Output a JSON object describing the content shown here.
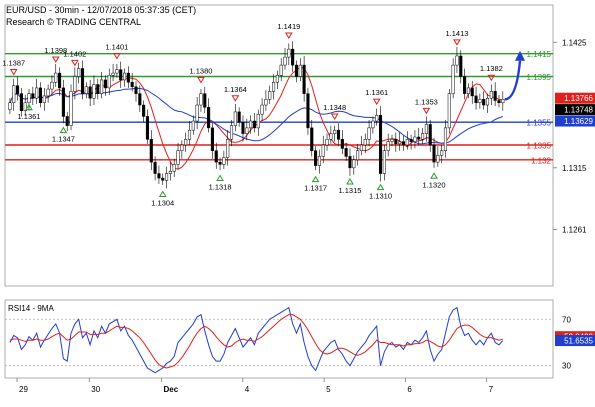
{
  "header": {
    "title": "EUR/USD - 30min - 12/07/2018 05:37:35 (CET)",
    "subtitle": "Research © TRADING CENTRAL"
  },
  "chart_data": [
    {
      "type": "candlestick",
      "ylim": [
        1.1215,
        1.1455
      ],
      "y_ticks": [
        "1.1425",
        "1.1315",
        "1.1261"
      ],
      "x_ticks": [
        "29",
        "30",
        "Dec",
        "4",
        "5",
        "6",
        "7"
      ],
      "levels": [
        {
          "value": 1.1415,
          "label": "1.1415",
          "color": "#2e9b2e"
        },
        {
          "value": 1.1395,
          "label": "1.1395",
          "color": "#2e9b2e"
        },
        {
          "value": 1.1355,
          "label": "1.1355",
          "color": "#1f3fcf"
        },
        {
          "value": 1.1335,
          "label": "1.1335",
          "color": "#e0201a"
        },
        {
          "value": 1.1322,
          "label": "1.132",
          "color": "#e0201a"
        }
      ],
      "price_boxes": [
        {
          "value": 1.1376,
          "label": "1.13766",
          "color": "#e0201a"
        },
        {
          "value": 1.1366,
          "label": "1.13748",
          "color": "#000000"
        },
        {
          "value": 1.1356,
          "label": "1.13629",
          "color": "#1f3fcf"
        }
      ],
      "annotations_high": [
        {
          "t": 1,
          "label": "1.1387"
        },
        {
          "t": 12,
          "label": "1.1398"
        },
        {
          "t": 17,
          "label": "1.1402"
        },
        {
          "t": 28,
          "label": "1.1401"
        },
        {
          "t": 50,
          "label": "1.1380"
        },
        {
          "t": 59,
          "label": "1.1364"
        },
        {
          "t": 73,
          "label": "1.1419"
        },
        {
          "t": 85,
          "label": "1.1348"
        },
        {
          "t": 96,
          "label": "1.1361"
        },
        {
          "t": 109,
          "label": "1.1353"
        },
        {
          "t": 117,
          "label": "1.1413"
        },
        {
          "t": 126,
          "label": "1.1382"
        }
      ],
      "annotations_low": [
        {
          "t": 5,
          "label": "1.1361"
        },
        {
          "t": 14,
          "label": "1.1347"
        },
        {
          "t": 40,
          "label": "1.1304"
        },
        {
          "t": 55,
          "label": "1.1318"
        },
        {
          "t": 80,
          "label": "1.1317"
        },
        {
          "t": 89,
          "label": "1.1315"
        },
        {
          "t": 97,
          "label": "1.1310"
        },
        {
          "t": 111,
          "label": "1.1320"
        }
      ],
      "close": [
        1.1372,
        1.1387,
        1.138,
        1.1365,
        1.1372,
        1.138,
        1.1376,
        1.1385,
        1.1372,
        1.1378,
        1.1384,
        1.139,
        1.1398,
        1.1385,
        1.136,
        1.1352,
        1.1382,
        1.1395,
        1.1402,
        1.138,
        1.1386,
        1.1376,
        1.1388,
        1.138,
        1.1392,
        1.1385,
        1.1396,
        1.1398,
        1.1401,
        1.1392,
        1.1398,
        1.139,
        1.1386,
        1.138,
        1.137,
        1.136,
        1.134,
        1.132,
        1.131,
        1.1306,
        1.1304,
        1.131,
        1.1312,
        1.1318,
        1.133,
        1.1335,
        1.134,
        1.1348,
        1.1356,
        1.137,
        1.138,
        1.1368,
        1.135,
        1.133,
        1.132,
        1.1318,
        1.1324,
        1.134,
        1.1352,
        1.1364,
        1.1355,
        1.1345,
        1.135,
        1.1356,
        1.135,
        1.1362,
        1.137,
        1.1375,
        1.1382,
        1.139,
        1.1396,
        1.1405,
        1.1412,
        1.1419,
        1.1405,
        1.1395,
        1.1405,
        1.138,
        1.135,
        1.133,
        1.1317,
        1.1325,
        1.1335,
        1.134,
        1.1345,
        1.1348,
        1.134,
        1.1332,
        1.1325,
        1.1315,
        1.1322,
        1.133,
        1.1335,
        1.134,
        1.135,
        1.1356,
        1.1361,
        1.131,
        1.133,
        1.1338,
        1.134,
        1.1336,
        1.1338,
        1.1335,
        1.134,
        1.1338,
        1.1342,
        1.134,
        1.1345,
        1.1353,
        1.1335,
        1.132,
        1.1326,
        1.133,
        1.135,
        1.138,
        1.1405,
        1.1413,
        1.1395,
        1.138,
        1.1385,
        1.1378,
        1.1372,
        1.1375,
        1.137,
        1.1376,
        1.1382,
        1.1374,
        1.1372,
        1.1375
      ],
      "projection": {
        "from_t": 130,
        "from_v": 1.1375,
        "to_t": 134,
        "to_v": 1.1414
      }
    },
    {
      "type": "line",
      "title": "RSI14 - 9MA",
      "ylim": [
        22,
        84
      ],
      "y_ticks": [
        "70",
        "30"
      ],
      "levels": [
        70,
        30
      ],
      "price_boxes": [
        {
          "value": 55.0,
          "label": "52.8428",
          "color": "#e0201a"
        },
        {
          "value": 51.65,
          "label": "51.6535",
          "color": "#1f3fcf"
        }
      ],
      "series": [
        {
          "key": "rsi",
          "color": "#1f3fcf",
          "values": [
            50,
            56,
            54,
            44,
            48,
            55,
            52,
            58,
            46,
            52,
            57,
            62,
            66,
            58,
            36,
            34,
            58,
            66,
            70,
            54,
            58,
            48,
            60,
            54,
            64,
            58,
            66,
            68,
            70,
            60,
            64,
            56,
            52,
            46,
            40,
            34,
            28,
            26,
            24,
            26,
            28,
            32,
            34,
            38,
            50,
            54,
            58,
            62,
            66,
            72,
            74,
            60,
            48,
            38,
            34,
            34,
            40,
            50,
            56,
            62,
            54,
            46,
            50,
            54,
            48,
            58,
            62,
            66,
            70,
            72,
            74,
            76,
            78,
            80,
            66,
            58,
            66,
            50,
            38,
            30,
            26,
            34,
            42,
            46,
            50,
            52,
            44,
            40,
            34,
            30,
            36,
            42,
            46,
            50,
            56,
            60,
            64,
            30,
            42,
            48,
            50,
            46,
            48,
            44,
            50,
            48,
            52,
            50,
            54,
            60,
            44,
            34,
            40,
            44,
            58,
            72,
            78,
            80,
            64,
            56,
            58,
            52,
            48,
            52,
            48,
            54,
            58,
            50,
            48,
            51.65
          ]
        },
        {
          "key": "ma",
          "color": "#e0201a",
          "values": [
            52,
            53,
            53,
            52,
            51,
            52,
            52,
            53,
            52,
            52,
            53,
            55,
            57,
            58,
            55,
            52,
            53,
            56,
            59,
            59,
            59,
            57,
            57,
            57,
            58,
            58,
            60,
            62,
            64,
            63,
            63,
            62,
            60,
            57,
            54,
            50,
            45,
            40,
            35,
            31,
            29,
            28,
            29,
            30,
            33,
            37,
            42,
            47,
            53,
            58,
            62,
            64,
            62,
            59,
            55,
            51,
            48,
            46,
            47,
            50,
            52,
            53,
            52,
            52,
            51,
            53,
            55,
            58,
            61,
            64,
            67,
            70,
            72,
            74,
            74,
            72,
            70,
            66,
            61,
            55,
            49,
            44,
            41,
            40,
            41,
            43,
            45,
            45,
            44,
            42,
            40,
            39,
            40,
            42,
            45,
            48,
            52,
            50,
            50,
            49,
            48,
            48,
            48,
            47,
            48,
            48,
            49,
            49,
            50,
            52,
            51,
            49,
            47,
            46,
            48,
            52,
            57,
            62,
            64,
            65,
            65,
            63,
            60,
            57,
            55,
            54,
            54,
            53,
            52,
            52.84
          ]
        }
      ],
      "x_ticks": [
        "29",
        "30",
        "Dec",
        "4",
        "5",
        "6",
        "7"
      ]
    }
  ]
}
